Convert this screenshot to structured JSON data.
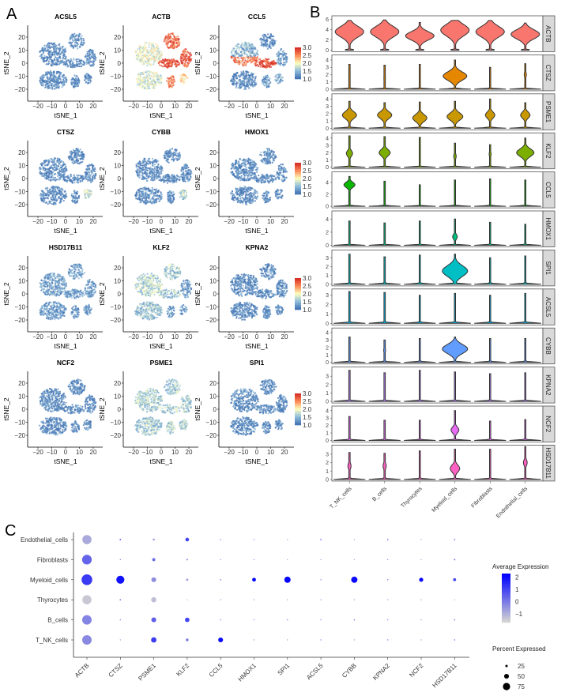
{
  "panel_labels": {
    "a": "A",
    "b": "B",
    "c": "C"
  },
  "chart_data": [
    {
      "type": "scatter",
      "panel": "A",
      "subtype": "tSNE feature plots",
      "genes": [
        "ACSL5",
        "ACTB",
        "CCL5",
        "CTSZ",
        "CYBB",
        "HMOX1",
        "HSD17B11",
        "KLF2",
        "KPNA2",
        "NCF2",
        "PSME1",
        "SPI1"
      ],
      "xlabel": "tSNE_1",
      "ylabel": "tSNE_2",
      "xticks": [
        "−20",
        "−10",
        "0",
        "10",
        "20"
      ],
      "yticks": [
        "20",
        "10",
        "0",
        "−10",
        "−20"
      ],
      "xlim": [
        -25,
        27
      ],
      "ylim": [
        -28,
        28
      ],
      "colorbar": {
        "ticks": [
          "3.0",
          "2.5",
          "2.0",
          "1.5",
          "1.0"
        ],
        "range": [
          1.0,
          3.0
        ],
        "colors": [
          "#4575b4",
          "#91bfdb",
          "#ffffbf",
          "#fc8d59",
          "#d73027"
        ]
      },
      "grid": false
    },
    {
      "type": "violin",
      "panel": "B",
      "groups": [
        "T_NK_cells",
        "B_cells",
        "Thyrocytes",
        "Myeloid_cells",
        "Fibroblasts",
        "Endothelial_cells"
      ],
      "genes": [
        {
          "name": "ACTB",
          "color": "#F8766D",
          "yticks": [
            0,
            2,
            4,
            6
          ],
          "ymax": 6.4,
          "max": [
            5.8,
            5.9,
            5.4,
            5.8,
            5.8,
            5.3
          ],
          "mode": [
            3.6,
            3.6,
            2.8,
            3.9,
            3.6,
            3.1
          ],
          "width": [
            0.9,
            0.9,
            0.9,
            0.9,
            0.9,
            0.9
          ]
        },
        {
          "name": "CTSZ",
          "color": "#E58700",
          "yticks": [
            0,
            1,
            2,
            3,
            4
          ],
          "ymax": 4.5,
          "max": [
            3.4,
            3.3,
            3.4,
            4.0,
            3.0,
            3.5
          ],
          "mode": [
            0,
            1.5,
            1.0,
            1.8,
            1.0,
            2.0
          ],
          "width": [
            0,
            0.05,
            0.04,
            0.75,
            0.03,
            0.07
          ]
        },
        {
          "name": "PSME1",
          "color": "#C99800",
          "yticks": [
            0,
            1,
            2,
            3,
            4
          ],
          "ymax": 4.5,
          "max": [
            3.7,
            3.5,
            3.6,
            3.7,
            4.0,
            3.5
          ],
          "mode": [
            1.8,
            1.8,
            1.4,
            1.6,
            1.8,
            1.8
          ],
          "width": [
            0.45,
            0.45,
            0.45,
            0.5,
            0.3,
            0.3
          ]
        },
        {
          "name": "KLF2",
          "color": "#7CAE00",
          "yticks": [
            0,
            1,
            2,
            3,
            4
          ],
          "ymax": 4.5,
          "max": [
            4.3,
            4.2,
            4.1,
            3.3,
            3.1,
            4.0
          ],
          "mode": [
            1.9,
            2.0,
            0,
            1.5,
            1.8,
            2.0
          ],
          "width": [
            0.2,
            0.35,
            0,
            0.08,
            0.06,
            0.55
          ]
        },
        {
          "name": "CCL5",
          "color": "#0CB702",
          "yticks": [
            0,
            2,
            4
          ],
          "ymax": 5.5,
          "max": [
            5.0,
            4.2,
            3.6,
            4.4,
            4.6,
            4.4
          ],
          "mode": [
            3.6,
            1.8,
            0,
            1.5,
            1.5,
            1.5
          ],
          "width": [
            0.35,
            0.04,
            0,
            0.03,
            0.03,
            0.03
          ]
        },
        {
          "name": "HMOX1",
          "color": "#00BF7D",
          "yticks": [
            0,
            2,
            4
          ],
          "ymax": 5.0,
          "max": [
            3.7,
            3.4,
            3.7,
            4.0,
            3.5,
            3.2
          ],
          "mode": [
            0,
            0,
            0,
            1.3,
            0,
            0
          ],
          "width": [
            0,
            0,
            0,
            0.15,
            0,
            0
          ]
        },
        {
          "name": "SPI1",
          "color": "#00BFC4",
          "yticks": [
            0,
            1,
            2,
            3
          ],
          "ymax": 3.7,
          "max": [
            3.4,
            3.1,
            3.3,
            3.4,
            3.0,
            3.2
          ],
          "mode": [
            0,
            0,
            0,
            1.5,
            0,
            0
          ],
          "width": [
            0,
            0,
            0,
            0.8,
            0,
            0
          ]
        },
        {
          "name": "ACSL5",
          "color": "#00B8E7",
          "yticks": [
            0,
            1,
            2,
            3
          ],
          "ymax": 3.5,
          "max": [
            3.4,
            3.3,
            3.0,
            3.2,
            3.0,
            3.2
          ],
          "mode": [
            0,
            0,
            0,
            0,
            0,
            1.8
          ],
          "width": [
            0,
            0,
            0,
            0,
            0,
            0.03
          ]
        },
        {
          "name": "CYBB",
          "color": "#619CFF",
          "yticks": [
            0,
            1,
            2,
            3,
            4
          ],
          "ymax": 4.4,
          "max": [
            3.4,
            3.0,
            3.2,
            3.4,
            3.2,
            3.2
          ],
          "mode": [
            0,
            1.6,
            0,
            1.8,
            0,
            0
          ],
          "width": [
            0,
            0.06,
            0,
            0.8,
            0,
            0
          ]
        },
        {
          "name": "KPNA2",
          "color": "#B983FF",
          "yticks": [
            0,
            1,
            2,
            3
          ],
          "ymax": 3.9,
          "max": [
            3.7,
            3.4,
            3.7,
            3.5,
            3.3,
            3.4
          ],
          "mode": [
            0,
            0,
            0,
            0,
            0,
            0
          ],
          "width": [
            0,
            0,
            0,
            0,
            0,
            0
          ]
        },
        {
          "name": "NCF2",
          "color": "#E76BF3",
          "yticks": [
            0,
            1,
            2,
            3,
            4
          ],
          "ymax": 4.4,
          "max": [
            3.2,
            2.7,
            2.7,
            4.0,
            2.6,
            2.8
          ],
          "mode": [
            0,
            0,
            0,
            1.4,
            0,
            0
          ],
          "width": [
            0,
            0,
            0,
            0.25,
            0,
            0
          ]
        },
        {
          "name": "HSD17B11",
          "color": "#FF61C3",
          "yticks": [
            0,
            1,
            2,
            3
          ],
          "ymax": 3.9,
          "max": [
            3.2,
            3.1,
            3.4,
            3.6,
            3.6,
            3.9
          ],
          "mode": [
            1.6,
            1.6,
            0,
            1.3,
            1.6,
            2.0
          ],
          "width": [
            0.1,
            0.1,
            0,
            0.3,
            0.04,
            0.12
          ]
        }
      ]
    },
    {
      "type": "dot",
      "panel": "C",
      "genes": [
        "ACTB",
        "CTSZ",
        "PSME1",
        "KLF2",
        "CCL5",
        "HMOX1",
        "SPI1",
        "ACSL5",
        "CYBB",
        "KPNA2",
        "NCF2",
        "HSD17B11"
      ],
      "cell_types": [
        "Endothelial_cells",
        "Fibroblasts",
        "Myeloid_cells",
        "Thyrocytes",
        "B_cells",
        "T_NK_cells"
      ],
      "percent_expressed": [
        [
          85,
          14,
          18,
          35,
          3,
          3,
          3,
          8,
          2,
          8,
          2,
          12
        ],
        [
          90,
          9,
          30,
          15,
          3,
          4,
          2,
          2,
          2,
          5,
          2,
          14
        ],
        [
          100,
          75,
          45,
          20,
          12,
          35,
          58,
          7,
          58,
          10,
          38,
          28
        ],
        [
          85,
          14,
          48,
          3,
          5,
          4,
          4,
          4,
          3,
          4,
          3,
          5
        ],
        [
          88,
          8,
          45,
          42,
          10,
          3,
          8,
          5,
          12,
          7,
          3,
          12
        ],
        [
          88,
          3,
          50,
          25,
          45,
          3,
          3,
          5,
          3,
          7,
          3,
          12
        ]
      ],
      "average_expression": [
        [
          -0.9,
          0.4,
          -0.4,
          1.0,
          -0.3,
          -0.5,
          -0.8,
          1.6,
          -0.8,
          1.2,
          -0.8,
          0.3
        ],
        [
          0.4,
          -0.1,
          0.2,
          -0.2,
          -0.4,
          -0.3,
          -0.8,
          -0.8,
          -0.8,
          -0.1,
          -0.8,
          0.2
        ],
        [
          1.2,
          2.0,
          -0.4,
          -0.5,
          -0.1,
          2.2,
          2.2,
          -0.1,
          2.1,
          0.3,
          2.2,
          1.0
        ],
        [
          -1.5,
          -0.2,
          -1.3,
          -1.4,
          -0.5,
          -0.6,
          -0.7,
          -0.6,
          -0.7,
          -0.6,
          -0.8,
          -1.2
        ],
        [
          -0.2,
          -0.1,
          0.5,
          1.0,
          -0.1,
          -0.6,
          -0.1,
          -0.3,
          -0.1,
          -0.2,
          -0.8,
          -0.1
        ],
        [
          -0.3,
          -0.8,
          1.2,
          0.0,
          2.1,
          -0.6,
          -0.7,
          -0.2,
          -0.8,
          -0.1,
          -0.8,
          -0.1
        ]
      ],
      "color_range": [
        -1.7,
        2.3
      ],
      "color_low": "#d3d3d3",
      "color_high": "#0000ff",
      "legend": {
        "color_title": "Average Expression",
        "color_ticks": [
          {
            "label": "2",
            "value": 2
          },
          {
            "label": "1",
            "value": 1
          },
          {
            "label": "0",
            "value": 0
          },
          {
            "label": "−1",
            "value": -1
          }
        ],
        "size_title": "Percent Expressed",
        "size_ticks": [
          {
            "label": "25",
            "value": 25
          },
          {
            "label": "50",
            "value": 50
          },
          {
            "label": "75",
            "value": 75
          }
        ],
        "placement": "right"
      },
      "grid": false
    }
  ]
}
